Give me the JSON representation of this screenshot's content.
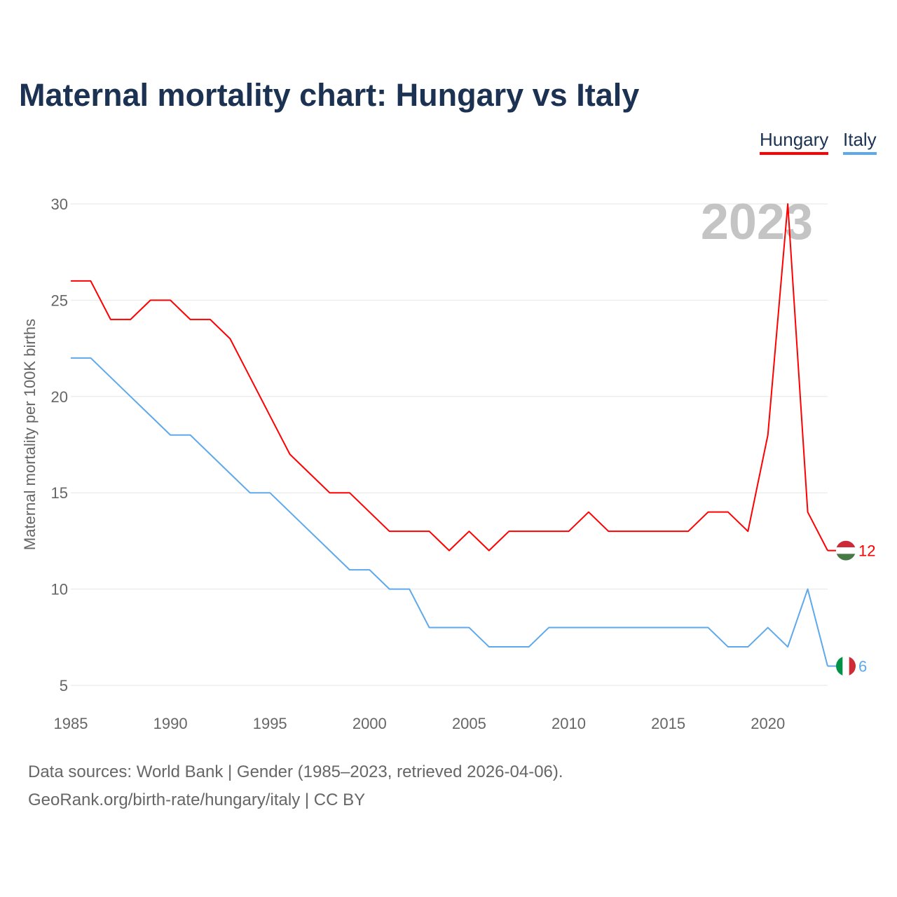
{
  "title": "Maternal mortality chart: Hungary vs Italy",
  "legend": [
    {
      "label": "Hungary",
      "color": "#ff0000"
    },
    {
      "label": "Italy",
      "color": "#5ea8ec"
    }
  ],
  "footer": {
    "line1": "Data sources: World Bank | Gender (1985–2023, retrieved 2026-04-06).",
    "line2": "GeoRank.org/birth-rate/hungary/italy | CC BY"
  },
  "chart_data": {
    "type": "line",
    "title": "Maternal mortality chart: Hungary vs Italy",
    "ylabel": "Maternal mortality per 100K births",
    "xlabel": "",
    "year_watermark": "2023",
    "xlim": [
      1985,
      2023
    ],
    "ylim": [
      5,
      30
    ],
    "xticks": [
      1985,
      1990,
      1995,
      2000,
      2005,
      2010,
      2015,
      2020
    ],
    "yticks": [
      5,
      10,
      15,
      20,
      25,
      30
    ],
    "grid": true,
    "legend_position": "top-right",
    "x": [
      1985,
      1986,
      1987,
      1988,
      1989,
      1990,
      1991,
      1992,
      1993,
      1994,
      1995,
      1996,
      1997,
      1998,
      1999,
      2000,
      2001,
      2002,
      2003,
      2004,
      2005,
      2006,
      2007,
      2008,
      2009,
      2010,
      2011,
      2012,
      2013,
      2014,
      2015,
      2016,
      2017,
      2018,
      2019,
      2020,
      2021,
      2022,
      2023
    ],
    "series": [
      {
        "name": "Hungary",
        "color": "#ff0000",
        "end_label": "12",
        "values": [
          26,
          26,
          24,
          24,
          25,
          25,
          24,
          24,
          23,
          21,
          19,
          17,
          16,
          15,
          15,
          14,
          13,
          13,
          13,
          12,
          13,
          12,
          13,
          13,
          13,
          13,
          14,
          13,
          13,
          13,
          13,
          13,
          14,
          14,
          13,
          18,
          30,
          14,
          12
        ]
      },
      {
        "name": "Italy",
        "color": "#5ea8ec",
        "end_label": "6",
        "values": [
          22,
          22,
          21,
          20,
          19,
          18,
          18,
          17,
          16,
          15,
          15,
          14,
          13,
          12,
          11,
          11,
          10,
          10,
          8,
          8,
          8,
          7,
          7,
          7,
          8,
          8,
          8,
          8,
          8,
          8,
          8,
          8,
          8,
          7,
          7,
          8,
          7,
          10,
          6
        ]
      }
    ]
  }
}
